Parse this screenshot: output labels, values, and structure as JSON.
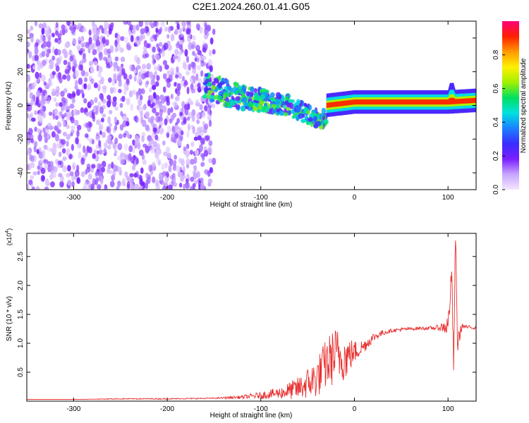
{
  "title": "C2E1.2024.260.01.41.G05",
  "colors": {
    "line": "#e83030",
    "axis": "#000000",
    "background": "#ffffff"
  },
  "chart_data": [
    {
      "type": "heatmap",
      "xlabel": "Height of straight line (km)",
      "ylabel": "Frequency (Hz)",
      "xlim": [
        -350,
        130
      ],
      "ylim": [
        -50,
        50
      ],
      "x_ticks": [
        -300,
        -200,
        -100,
        0,
        100
      ],
      "x_tick_labels": [
        "-300",
        "-200",
        "-100",
        "0",
        "100"
      ],
      "y_ticks": [
        -40,
        -20,
        0,
        20,
        40
      ],
      "y_tick_labels": [
        "-40",
        "-20",
        "0",
        "20",
        "40"
      ],
      "colorbar": {
        "label": "Normalized spectral amplitude",
        "range": [
          0,
          1
        ],
        "ticks": [
          0.0,
          0.2,
          0.4,
          0.6,
          0.8
        ],
        "tick_labels": [
          "0.0",
          "0.2",
          "0.4",
          "0.6",
          "0.8"
        ],
        "colormap": [
          "#f4e6ff",
          "#c8a6ff",
          "#7a1fff",
          "#3a2cff",
          "#1a80ff",
          "#00e0e0",
          "#00e060",
          "#a0f000",
          "#fff000",
          "#ff9a00",
          "#ff2000",
          "#ff007a"
        ]
      },
      "regions": [
        {
          "name": "noise",
          "x_range": [
            -350,
            -160
          ],
          "freq_range": [
            -50,
            50
          ],
          "amplitude": 0.15
        },
        {
          "name": "transition",
          "x_range": [
            -160,
            -30
          ],
          "freq_center": [
            [
              -160,
              12
            ],
            [
              -130,
              6
            ],
            [
              -100,
              3
            ],
            [
              -70,
              0
            ],
            [
              -40,
              -8
            ]
          ],
          "freq_spread": 10,
          "amplitude": 0.45
        },
        {
          "name": "signal",
          "x_range": [
            -30,
            130
          ],
          "freq_center": [
            [
              -30,
              0
            ],
            [
              0,
              2
            ],
            [
              60,
              2
            ],
            [
              100,
              2
            ],
            [
              130,
              3
            ]
          ],
          "amplitude": 0.9
        }
      ]
    },
    {
      "type": "line",
      "xlabel": "Height of straight line (km)",
      "ylabel": "SNR (10 * v/v)",
      "y_scale_label": "(x10",
      "y_scale_exponent": "4",
      "xlim": [
        -350,
        130
      ],
      "ylim": [
        0,
        2.9
      ],
      "x_ticks": [
        -300,
        -200,
        -100,
        0,
        100
      ],
      "x_tick_labels": [
        "-300",
        "-200",
        "-100",
        "0",
        "100"
      ],
      "y_ticks": [
        0.5,
        1.0,
        1.5,
        2.0,
        2.5
      ],
      "y_tick_labels": [
        "0.5",
        "1.0",
        "1.5",
        "2.0",
        "2.5"
      ],
      "x": [
        -350,
        -300,
        -250,
        -200,
        -150,
        -120,
        -100,
        -80,
        -60,
        -40,
        -30,
        -20,
        -10,
        0,
        10,
        20,
        30,
        40,
        50,
        60,
        70,
        80,
        90,
        95,
        100,
        104,
        106,
        108,
        110,
        115,
        120,
        130
      ],
      "y": [
        0.03,
        0.03,
        0.04,
        0.04,
        0.05,
        0.07,
        0.1,
        0.14,
        0.22,
        0.4,
        0.65,
        0.8,
        0.75,
        0.85,
        0.95,
        1.1,
        1.18,
        1.22,
        1.24,
        1.25,
        1.26,
        1.26,
        1.27,
        1.28,
        1.3,
        2.2,
        0.6,
        2.9,
        1.0,
        1.3,
        1.28,
        1.27
      ],
      "y_noise": [
        0.0,
        0.0,
        0.01,
        0.01,
        0.01,
        0.03,
        0.06,
        0.1,
        0.2,
        0.35,
        0.45,
        0.5,
        0.4,
        0.2,
        0.12,
        0.08,
        0.05,
        0.03,
        0.03,
        0.03,
        0.03,
        0.03,
        0.05,
        0.1,
        0.2,
        0.2,
        0.2,
        0.2,
        0.2,
        0.05,
        0.03,
        0.03
      ]
    }
  ]
}
